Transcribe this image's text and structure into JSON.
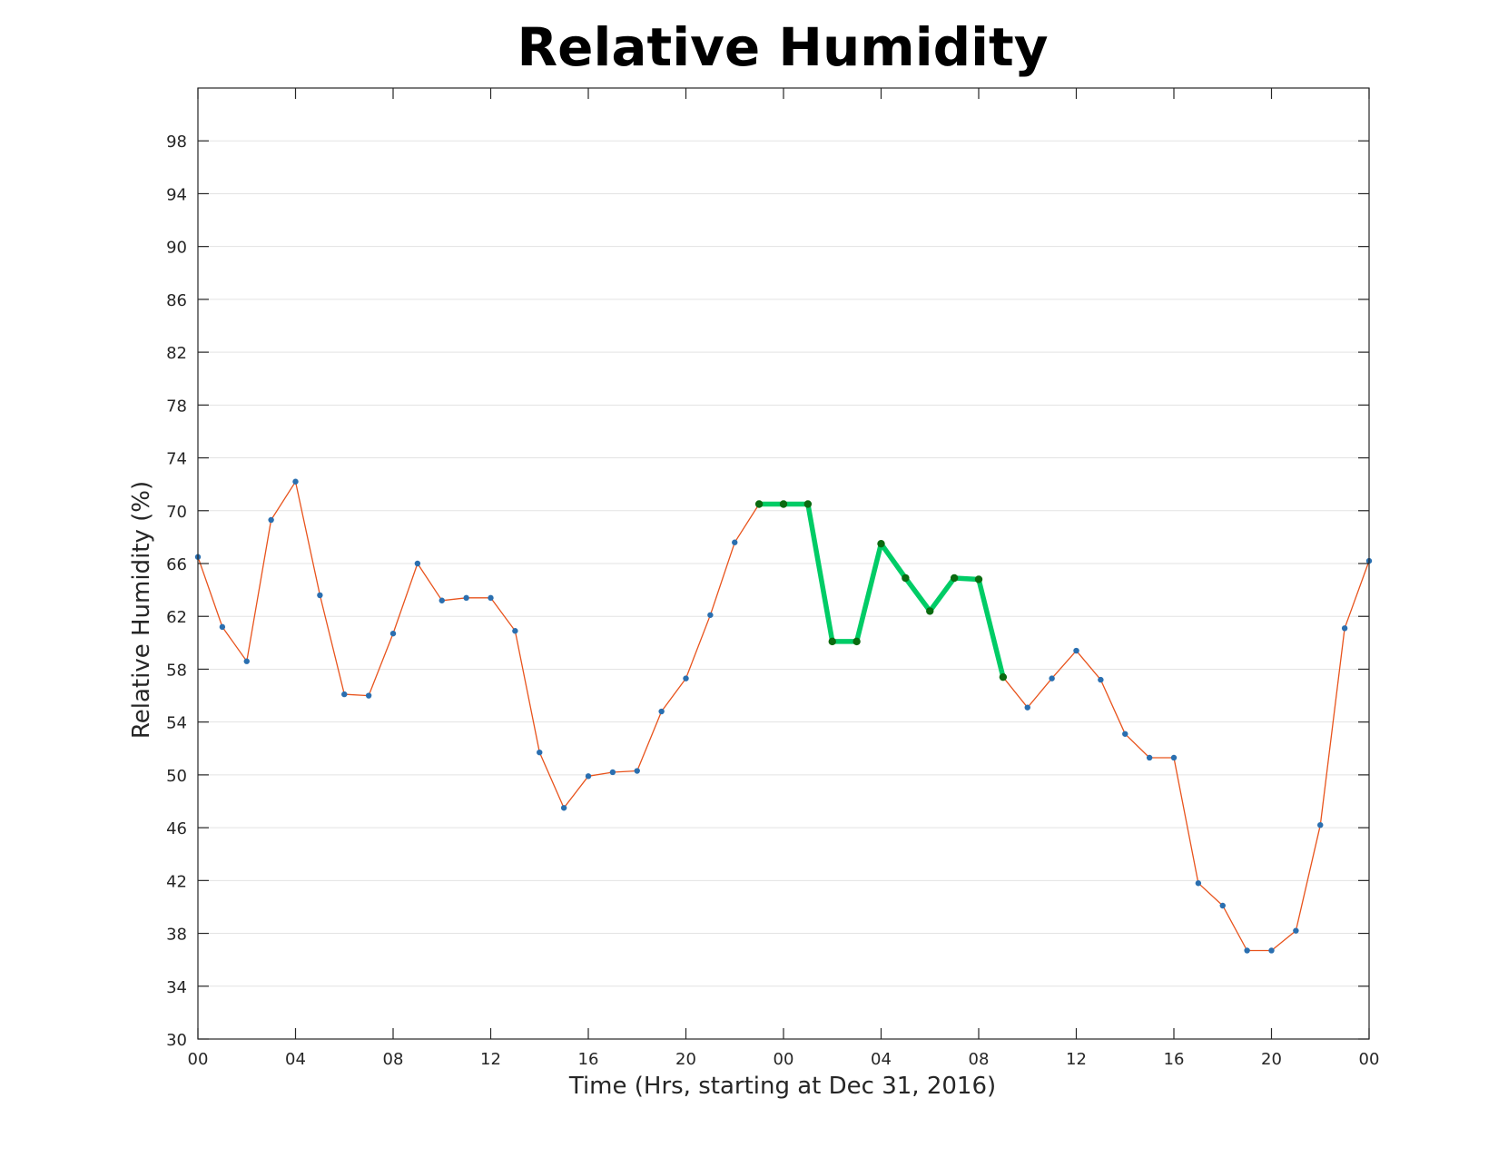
{
  "chart_data": {
    "type": "line",
    "title": "Relative Humidity",
    "xlabel": "Time (Hrs, starting at Dec 31, 2016)",
    "ylabel": "Relative Humidity (%)",
    "ylim": [
      30,
      102
    ],
    "xlim": [
      0,
      48
    ],
    "grid": "horizontal",
    "x_ticks": [
      {
        "x": 0,
        "label": "00"
      },
      {
        "x": 4,
        "label": "04"
      },
      {
        "x": 8,
        "label": "08"
      },
      {
        "x": 12,
        "label": "12"
      },
      {
        "x": 16,
        "label": "16"
      },
      {
        "x": 20,
        "label": "20"
      },
      {
        "x": 24,
        "label": "00"
      },
      {
        "x": 28,
        "label": "04"
      },
      {
        "x": 32,
        "label": "08"
      },
      {
        "x": 36,
        "label": "12"
      },
      {
        "x": 40,
        "label": "16"
      },
      {
        "x": 44,
        "label": "20"
      },
      {
        "x": 48,
        "label": "00"
      }
    ],
    "y_ticks": [
      30,
      34,
      38,
      42,
      46,
      50,
      54,
      58,
      62,
      66,
      70,
      74,
      78,
      82,
      86,
      90,
      94,
      98
    ],
    "series": [
      {
        "color": "#e8531c",
        "marker_color": "#2a6fb0",
        "x": [
          0,
          1,
          2,
          3,
          4,
          5,
          6,
          7,
          8,
          9,
          10,
          11,
          12,
          13,
          14,
          15,
          16,
          17,
          18,
          19,
          20,
          21,
          22,
          23,
          24,
          25,
          26,
          27,
          28,
          29,
          30,
          31,
          32,
          33,
          34,
          35,
          36,
          37,
          38,
          39,
          40,
          41,
          42,
          43,
          44,
          45,
          46,
          47,
          48
        ],
        "y": [
          66.5,
          61.2,
          58.6,
          69.3,
          72.2,
          63.6,
          56.1,
          56.0,
          60.7,
          66.0,
          63.2,
          63.4,
          63.4,
          60.9,
          51.7,
          47.5,
          49.9,
          50.2,
          50.3,
          54.8,
          57.3,
          62.1,
          67.6,
          70.5,
          70.5,
          70.5,
          60.1,
          60.1,
          67.5,
          64.9,
          62.4,
          64.9,
          64.8,
          57.4,
          55.1,
          57.3,
          59.4,
          57.2,
          53.1,
          51.3,
          51.3,
          41.8,
          40.1,
          36.7,
          36.7,
          38.2,
          46.2,
          61.1,
          66.2
        ]
      },
      {
        "color": "#00cc66",
        "marker_color": "#0a6b10",
        "x": [
          23,
          24,
          25,
          26,
          27,
          28,
          29,
          30,
          31,
          32,
          33
        ],
        "y": [
          70.5,
          70.5,
          70.5,
          60.1,
          60.1,
          67.5,
          64.9,
          62.4,
          64.9,
          64.8,
          57.4
        ]
      }
    ]
  }
}
